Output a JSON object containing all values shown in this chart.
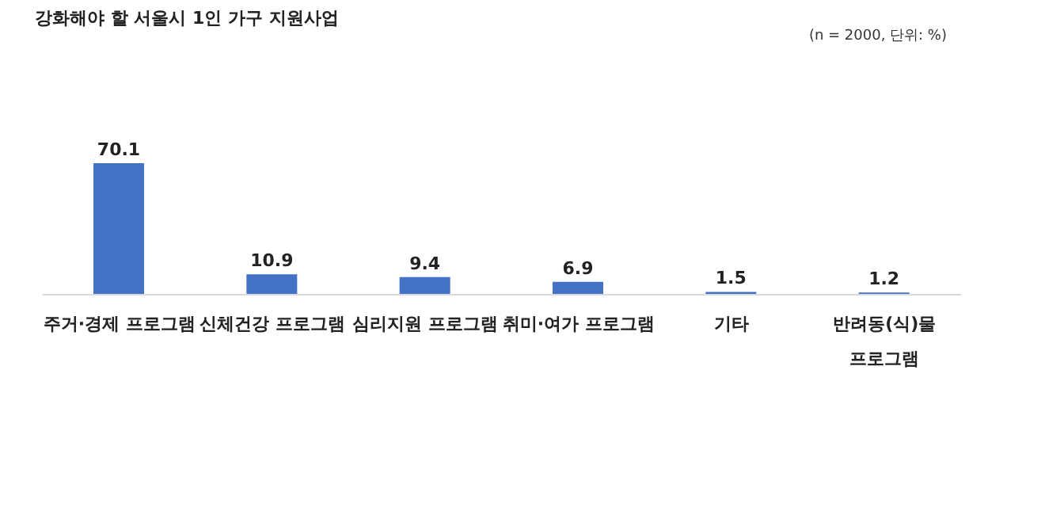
{
  "chart_data": {
    "type": "bar",
    "title": "강화해야 할 서울시 1인 가구 지원사업",
    "annotations": [
      "(n = 2000, 단위: %)"
    ],
    "categories": [
      "주거·경제 프로그램",
      "신체건강 프로그램",
      "심리지원 프로그램",
      "취미·여가 프로그램",
      "기타",
      "반려동(식)물 프로그램"
    ],
    "values": [
      70.1,
      10.9,
      9.4,
      6.9,
      1.5,
      1.2
    ],
    "color": "#4472c4",
    "data_labels": true,
    "grid": false
  }
}
